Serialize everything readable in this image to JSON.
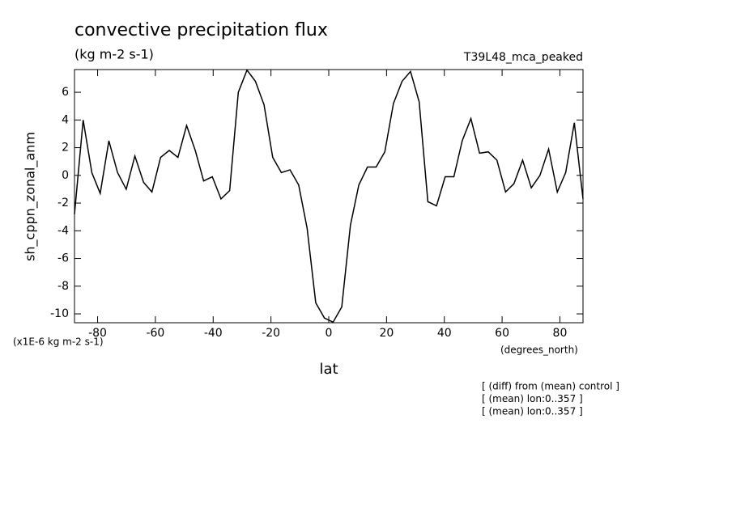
{
  "chart_data": {
    "type": "line",
    "title": "convective precipitation flux",
    "subtitle": "(kg m-2 s-1)",
    "dataset": "T39L48_mca_peaked",
    "ylabel": "sh_cppn_zonal_anm",
    "y_units": "(x1E-6 kg m-2 s-1)",
    "xlabel": "lat",
    "x_units": "(degrees_north)",
    "notes": [
      "[ (diff) from (mean) control ]",
      "[ (mean) lon:0..357 ]",
      "[ (mean) lon:0..357 ]"
    ],
    "x": [
      -88.0,
      -85.0,
      -82.0,
      -79.1,
      -76.1,
      -73.1,
      -70.1,
      -67.1,
      -64.1,
      -61.2,
      -58.2,
      -55.2,
      -52.2,
      -49.2,
      -46.2,
      -43.3,
      -40.3,
      -37.3,
      -34.3,
      -31.3,
      -28.3,
      -25.4,
      -22.4,
      -19.4,
      -16.4,
      -13.4,
      -10.4,
      -7.5,
      -4.5,
      -1.5,
      1.5,
      4.5,
      7.5,
      10.4,
      13.4,
      16.4,
      19.4,
      22.4,
      25.4,
      28.3,
      31.3,
      34.3,
      37.3,
      40.3,
      43.3,
      46.2,
      49.2,
      52.2,
      55.2,
      58.2,
      61.2,
      64.1,
      67.1,
      70.1,
      73.1,
      76.1,
      79.1,
      82.0,
      85.0,
      88.0
    ],
    "series": [
      {
        "color": "#000000",
        "values": [
          -2.8,
          4.0,
          0.2,
          -1.3,
          2.5,
          0.2,
          -1.0,
          1.4,
          -0.5,
          -1.2,
          1.3,
          1.8,
          1.3,
          3.6,
          1.8,
          -0.4,
          -0.1,
          -1.7,
          -1.1,
          6.0,
          7.6,
          6.8,
          5.1,
          1.3,
          0.2,
          0.4,
          -0.7,
          -3.8,
          -9.2,
          -10.3,
          -10.6,
          -9.5,
          -3.6,
          -0.7,
          0.6,
          0.6,
          1.7,
          5.2,
          6.8,
          7.5,
          5.3,
          -1.9,
          -2.2,
          -0.1,
          -0.1,
          2.5,
          4.1,
          1.6,
          1.7,
          1.1,
          -1.2,
          -0.6,
          1.1,
          -0.9,
          0.0,
          1.9,
          -1.2,
          0.2,
          3.8,
          -1.7
        ]
      }
    ],
    "xlim": [
      -88,
      88
    ],
    "ylim": [
      -10.64,
      7.64
    ],
    "xticks": [
      -80,
      -60,
      -40,
      -20,
      0,
      20,
      40,
      60,
      80
    ],
    "yticks": [
      -10,
      -8,
      -6,
      -4,
      -2,
      0,
      2,
      4,
      6
    ]
  }
}
